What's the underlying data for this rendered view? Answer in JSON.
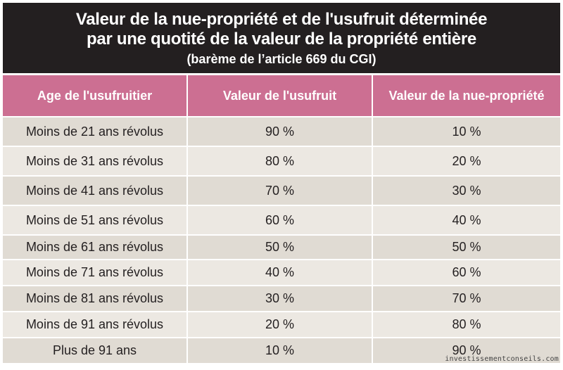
{
  "title": {
    "line1": "Valeur de la nue-propriété et de l'usufruit déterminée",
    "line2": "par une quotité de la valeur de la propriété entière",
    "subtitle": "(barème de l’article 669 du CGI)"
  },
  "table": {
    "headers": [
      "Age de l'usufruitier",
      "Valeur de l'usufruit",
      "Valeur de la nue-propriété"
    ],
    "rows": [
      [
        "Moins de 21 ans révolus",
        "90 %",
        "10 %"
      ],
      [
        "Moins de 31 ans révolus",
        "80 %",
        "20 %"
      ],
      [
        "Moins de 41 ans révolus",
        "70 %",
        "30 %"
      ],
      [
        "Moins de 51 ans révolus",
        "60 %",
        "40 %"
      ],
      [
        "Moins de 61 ans révolus",
        "50 %",
        "50 %"
      ],
      [
        "Moins de 71 ans révolus",
        "40 %",
        "60 %"
      ],
      [
        "Moins de 81 ans révolus",
        "30 %",
        "70 %"
      ],
      [
        "Moins de 91 ans révolus",
        "20 %",
        "80 %"
      ],
      [
        "Plus de 91 ans",
        "10 %",
        "90 %"
      ]
    ]
  },
  "watermark": "investissementconseils.com",
  "colors": {
    "title_bg": "#231f20",
    "header_bg": "#cc6f92",
    "row_odd": "#e0dbd3",
    "row_even": "#ece8e2"
  }
}
